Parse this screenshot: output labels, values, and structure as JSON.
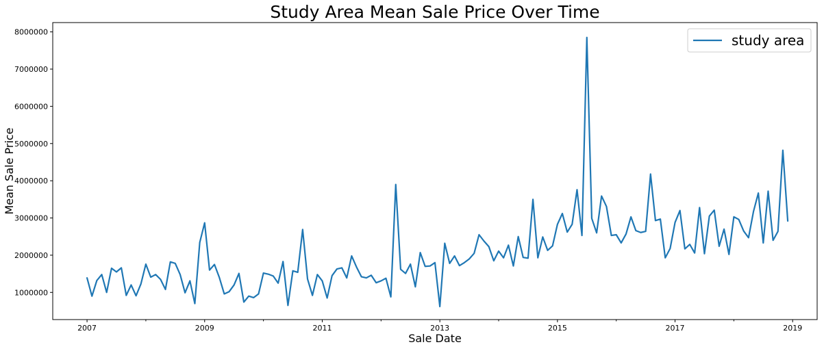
{
  "chart_data": {
    "type": "line",
    "title": "Study Area Mean Sale Price Over Time",
    "xlabel": "Sale Date",
    "ylabel": "Mean Sale Price",
    "x_ticks": [
      "2007",
      "2009",
      "2011",
      "2013",
      "2015",
      "2017",
      "2019"
    ],
    "y_ticks": [
      "1000000",
      "2000000",
      "3000000",
      "4000000",
      "5000000",
      "6000000",
      "7000000",
      "8000000"
    ],
    "xlim": [
      "2006-06",
      "2019-06"
    ],
    "ylim": [
      270000,
      8250000
    ],
    "grid": false,
    "legend_position": "top-right",
    "series": [
      {
        "name": "study area",
        "color": "#1f77b4",
        "x": [
          "2007-01",
          "2007-02",
          "2007-03",
          "2007-04",
          "2007-05",
          "2007-06",
          "2007-07",
          "2007-08",
          "2007-09",
          "2007-10",
          "2007-11",
          "2007-12",
          "2008-01",
          "2008-02",
          "2008-03",
          "2008-04",
          "2008-05",
          "2008-06",
          "2008-07",
          "2008-08",
          "2008-09",
          "2008-10",
          "2008-11",
          "2008-12",
          "2009-01",
          "2009-02",
          "2009-03",
          "2009-04",
          "2009-05",
          "2009-06",
          "2009-07",
          "2009-08",
          "2009-09",
          "2009-10",
          "2009-11",
          "2009-12",
          "2010-01",
          "2010-02",
          "2010-03",
          "2010-04",
          "2010-05",
          "2010-06",
          "2010-07",
          "2010-08",
          "2010-09",
          "2010-10",
          "2010-11",
          "2010-12",
          "2011-01",
          "2011-02",
          "2011-03",
          "2011-04",
          "2011-05",
          "2011-06",
          "2011-07",
          "2011-08",
          "2011-09",
          "2011-10",
          "2011-11",
          "2011-12",
          "2012-01",
          "2012-02",
          "2012-03",
          "2012-04",
          "2012-05",
          "2012-06",
          "2012-07",
          "2012-08",
          "2012-09",
          "2012-10",
          "2012-11",
          "2012-12",
          "2013-01",
          "2013-02",
          "2013-03",
          "2013-04",
          "2013-05",
          "2013-06",
          "2013-07",
          "2013-08",
          "2013-09",
          "2013-10",
          "2013-11",
          "2013-12",
          "2014-01",
          "2014-02",
          "2014-03",
          "2014-04",
          "2014-05",
          "2014-06",
          "2014-07",
          "2014-08",
          "2014-09",
          "2014-10",
          "2014-11",
          "2014-12",
          "2015-01",
          "2015-02",
          "2015-03",
          "2015-04",
          "2015-05",
          "2015-06",
          "2015-07",
          "2015-08",
          "2015-09",
          "2015-10",
          "2015-11",
          "2015-12",
          "2016-01",
          "2016-02",
          "2016-03",
          "2016-04",
          "2016-05",
          "2016-06",
          "2016-07",
          "2016-08",
          "2016-09",
          "2016-10",
          "2016-11",
          "2016-12",
          "2017-01",
          "2017-02",
          "2017-03",
          "2017-04",
          "2017-05",
          "2017-06",
          "2017-07",
          "2017-08",
          "2017-09",
          "2017-10",
          "2017-11",
          "2017-12",
          "2018-01",
          "2018-02",
          "2018-03",
          "2018-04",
          "2018-05",
          "2018-06",
          "2018-07",
          "2018-08",
          "2018-09",
          "2018-10",
          "2018-11",
          "2018-12"
        ],
        "y": [
          1390000,
          900000,
          1320000,
          1480000,
          1000000,
          1650000,
          1550000,
          1660000,
          920000,
          1200000,
          910000,
          1230000,
          1760000,
          1410000,
          1480000,
          1350000,
          1080000,
          1820000,
          1780000,
          1480000,
          990000,
          1310000,
          700000,
          2340000,
          2870000,
          1600000,
          1750000,
          1400000,
          960000,
          1020000,
          1200000,
          1510000,
          740000,
          900000,
          860000,
          960000,
          1520000,
          1490000,
          1440000,
          1250000,
          1830000,
          650000,
          1580000,
          1540000,
          2690000,
          1360000,
          920000,
          1480000,
          1310000,
          850000,
          1450000,
          1630000,
          1660000,
          1390000,
          1980000,
          1680000,
          1420000,
          1390000,
          1460000,
          1260000,
          1310000,
          1380000,
          880000,
          3900000,
          1620000,
          1510000,
          1760000,
          1150000,
          2070000,
          1700000,
          1710000,
          1800000,
          620000,
          2320000,
          1780000,
          1980000,
          1720000,
          1800000,
          1900000,
          2050000,
          2550000,
          2380000,
          2230000,
          1850000,
          2110000,
          1930000,
          2270000,
          1710000,
          2500000,
          1940000,
          1920000,
          3500000,
          1930000,
          2490000,
          2130000,
          2250000,
          2830000,
          3120000,
          2620000,
          2830000,
          3760000,
          2530000,
          7850000,
          2990000,
          2600000,
          3590000,
          3310000,
          2530000,
          2550000,
          2330000,
          2570000,
          3030000,
          2660000,
          2610000,
          2640000,
          4180000,
          2930000,
          2970000,
          1930000,
          2180000,
          2880000,
          3200000,
          2170000,
          2290000,
          2060000,
          3280000,
          2040000,
          3050000,
          3210000,
          2240000,
          2700000,
          2020000,
          3030000,
          2960000,
          2650000,
          2470000,
          3170000,
          3670000,
          2330000,
          3720000,
          2400000,
          2640000,
          4820000,
          2920000
        ]
      }
    ]
  }
}
